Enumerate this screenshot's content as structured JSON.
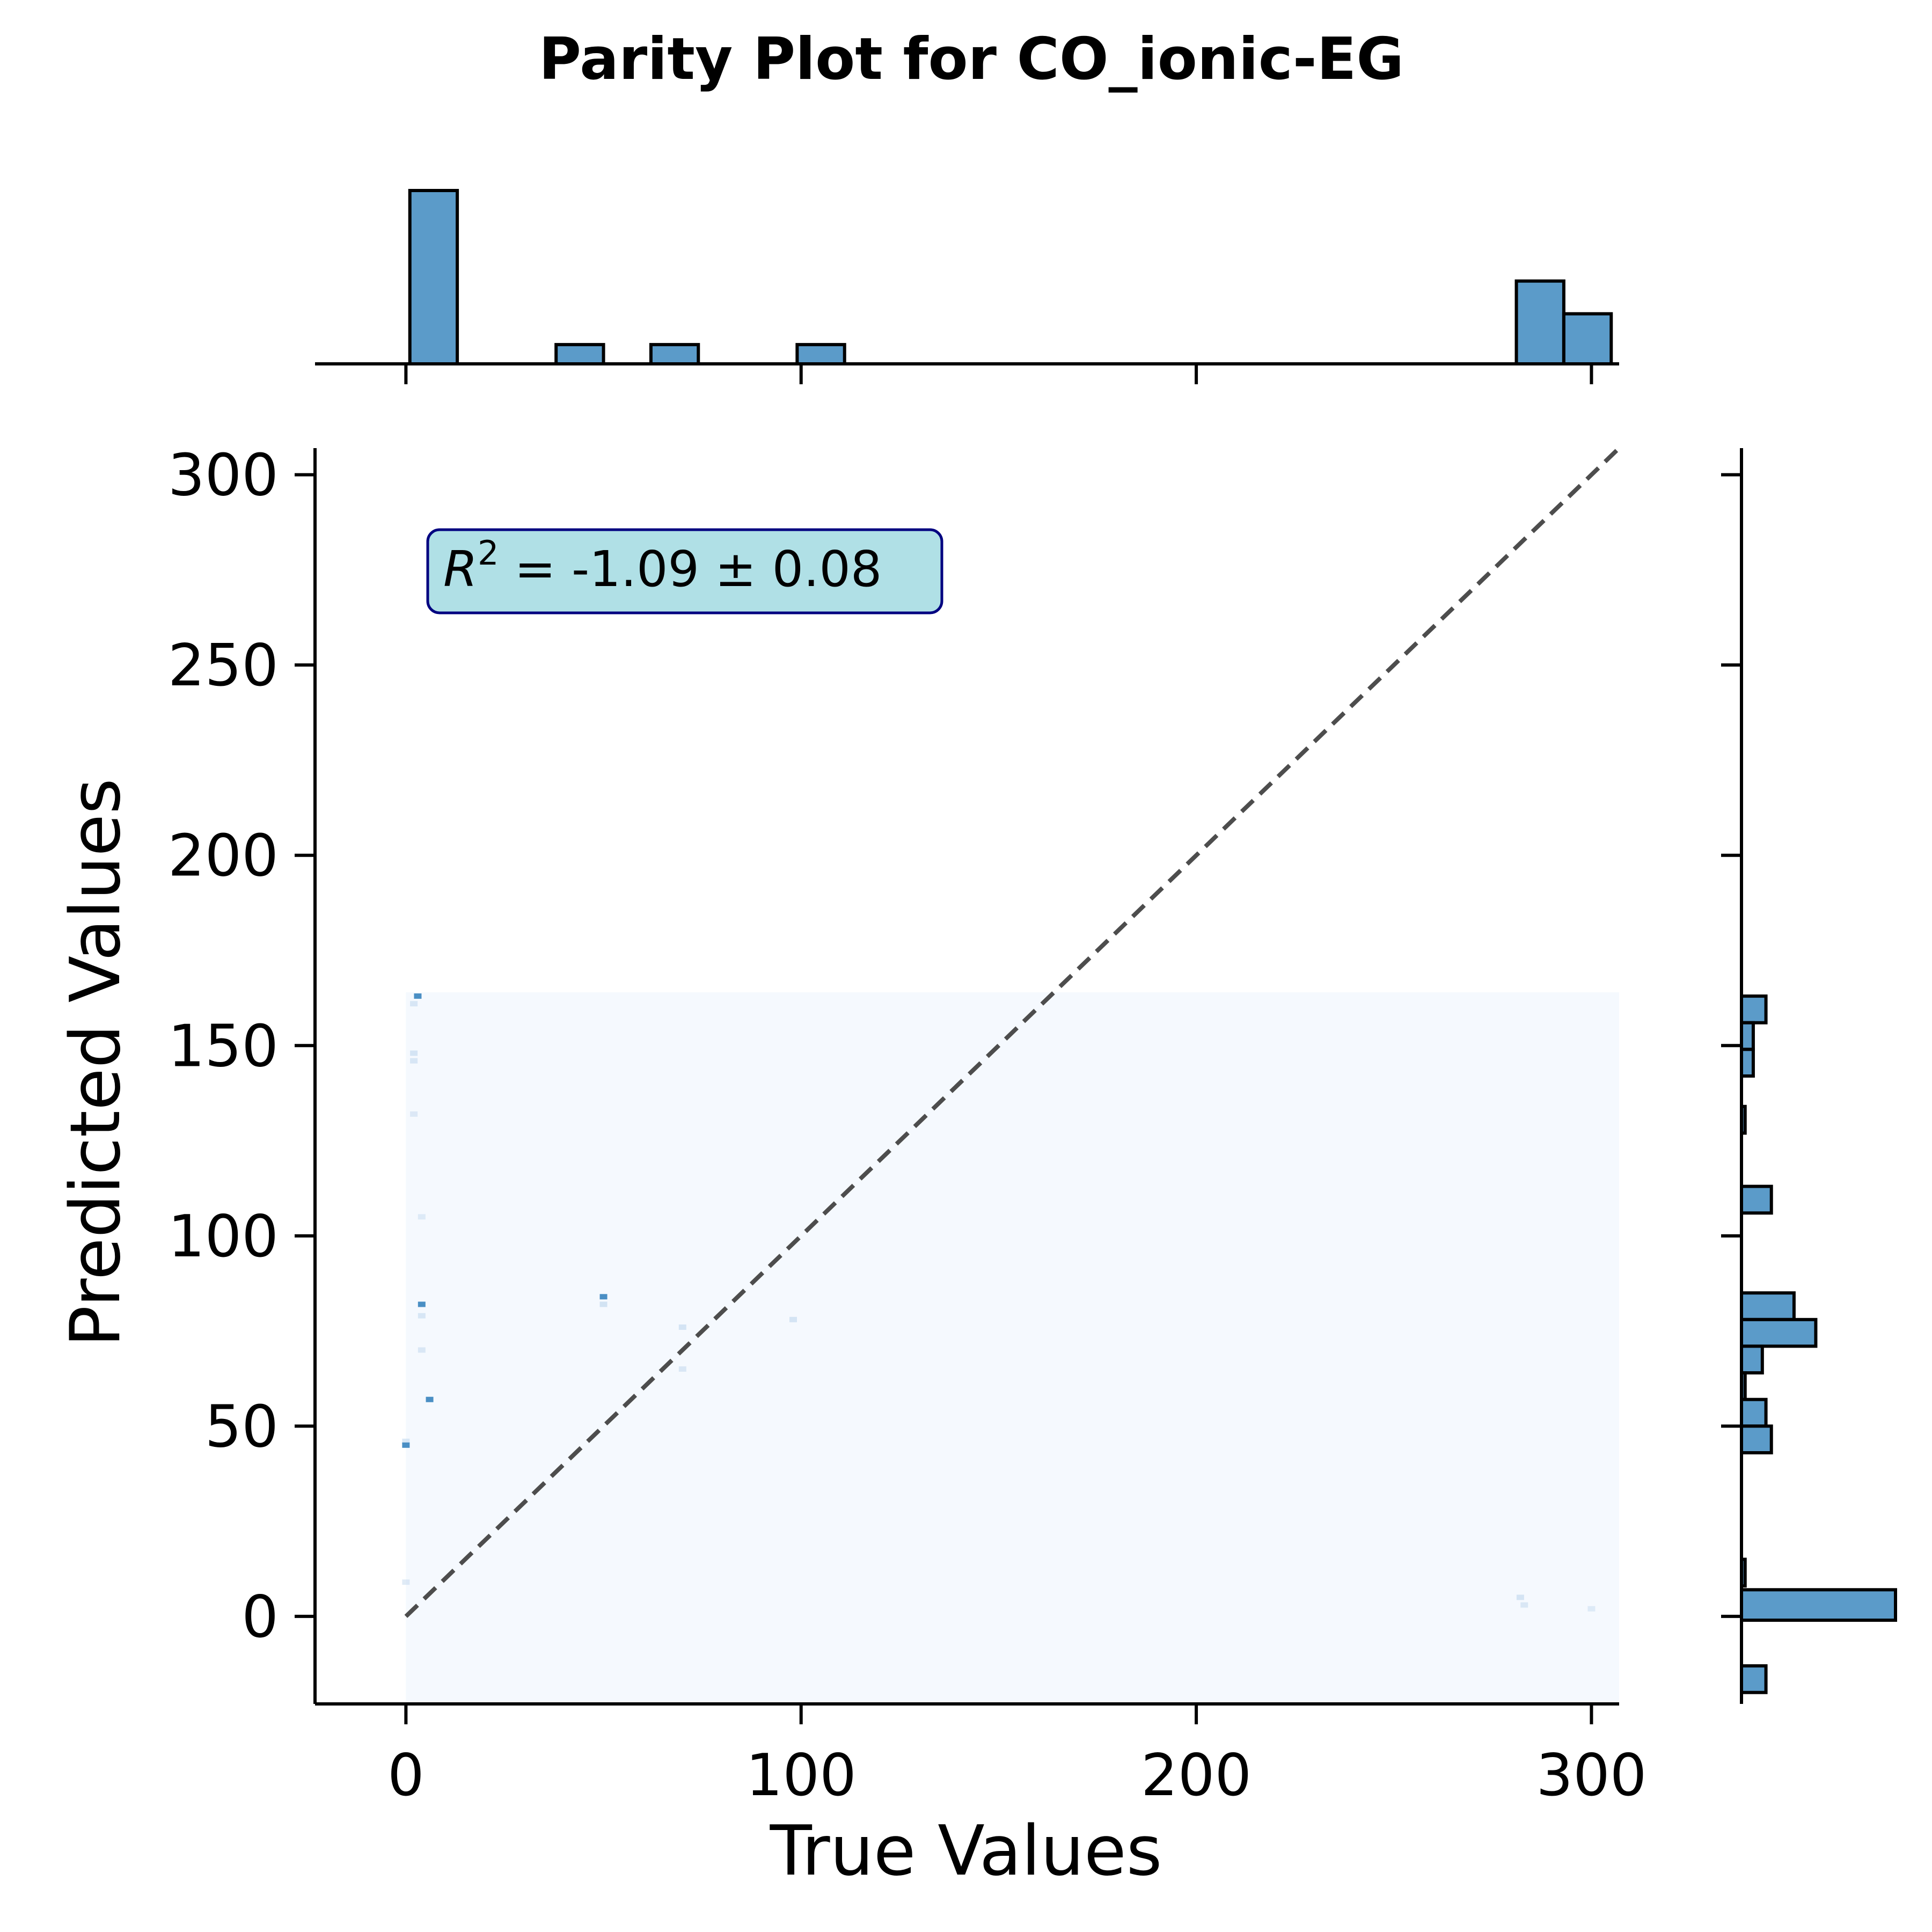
{
  "chart_data": {
    "type": "scatter",
    "title": "Parity Plot for CO_ionic-EG",
    "xlabel": "True Values",
    "ylabel": "Predicted Values",
    "xlim": [
      -23,
      307
    ],
    "ylim": [
      -23,
      307
    ],
    "xticks": [
      0,
      100,
      200,
      300
    ],
    "yticks": [
      0,
      50,
      100,
      150,
      200,
      250,
      300
    ],
    "annotation": {
      "prefix": "R",
      "superscript": "2",
      "text": " = -1.09 ± 0.08"
    },
    "parity_line": {
      "from": [
        0,
        0
      ],
      "to": [
        307,
        307
      ]
    },
    "density_region": {
      "x": [
        0,
        307
      ],
      "y": [
        -23,
        164
      ]
    },
    "points": [
      {
        "x": 3,
        "y": 163,
        "w": 0.8
      },
      {
        "x": 2,
        "y": 161,
        "w": 0.3
      },
      {
        "x": 2,
        "y": 148,
        "w": 0.35
      },
      {
        "x": 2,
        "y": 146,
        "w": 0.3
      },
      {
        "x": 2,
        "y": 132,
        "w": 0.2
      },
      {
        "x": 4,
        "y": 105,
        "w": 0.15
      },
      {
        "x": 4,
        "y": 82,
        "w": 0.7
      },
      {
        "x": 4,
        "y": 79,
        "w": 0.3
      },
      {
        "x": 4,
        "y": 70,
        "w": 0.25
      },
      {
        "x": 6,
        "y": 57,
        "w": 0.75
      },
      {
        "x": 0,
        "y": 46,
        "w": 0.3
      },
      {
        "x": 0,
        "y": 45,
        "w": 0.8
      },
      {
        "x": 0,
        "y": 9,
        "w": 0.2
      },
      {
        "x": 50,
        "y": 84,
        "w": 0.75
      },
      {
        "x": 50,
        "y": 82,
        "w": 0.4
      },
      {
        "x": 70,
        "y": 76,
        "w": 0.35
      },
      {
        "x": 70,
        "y": 65,
        "w": 0.25
      },
      {
        "x": 98,
        "y": 78,
        "w": 0.35
      },
      {
        "x": 282,
        "y": 5,
        "w": 0.35
      },
      {
        "x": 283,
        "y": 3,
        "w": 0.25
      },
      {
        "x": 300,
        "y": 2,
        "w": 0.15
      }
    ],
    "top_histogram": {
      "bins": [
        {
          "x0": 1,
          "x1": 13,
          "height": 9
        },
        {
          "x0": 38,
          "x1": 50,
          "height": 1
        },
        {
          "x0": 62,
          "x1": 74,
          "height": 1
        },
        {
          "x0": 99,
          "x1": 111,
          "height": 1
        },
        {
          "x0": 281,
          "x1": 293,
          "height": 4.3
        },
        {
          "x0": 293,
          "x1": 305,
          "height": 2.6
        }
      ],
      "max_height": 9
    },
    "right_histogram": {
      "bins": [
        {
          "y0": 156,
          "y1": 163,
          "width": 2.7
        },
        {
          "y0": 149,
          "y1": 156,
          "width": 1.3
        },
        {
          "y0": 142,
          "y1": 149,
          "width": 1.3
        },
        {
          "y0": 127,
          "y1": 134,
          "width": 0.4
        },
        {
          "y0": 106,
          "y1": 113,
          "width": 3.3
        },
        {
          "y0": 78,
          "y1": 85,
          "width": 5.8
        },
        {
          "y0": 71,
          "y1": 78,
          "width": 8.2
        },
        {
          "y0": 64,
          "y1": 71,
          "width": 2.3
        },
        {
          "y0": 57,
          "y1": 64,
          "width": 0.4
        },
        {
          "y0": 50,
          "y1": 57,
          "width": 2.7
        },
        {
          "y0": 43,
          "y1": 50,
          "width": 3.3
        },
        {
          "y0": 8,
          "y1": 15,
          "width": 0.4
        },
        {
          "y0": -1,
          "y1": 7,
          "width": 17
        },
        {
          "y0": -20,
          "y1": -13,
          "width": 2.7
        }
      ],
      "max_width": 17
    },
    "colors": {
      "bar_fill": "#5b9bc9",
      "bar_edge": "#000000",
      "density_bg": "#f5f9fe",
      "point_strong": "#4a8fc4",
      "point_light": "#c6dbef",
      "parity_line": "#4d4d4d",
      "annotation_bg": "#b0e0e6",
      "annotation_edge": "#000080"
    }
  }
}
